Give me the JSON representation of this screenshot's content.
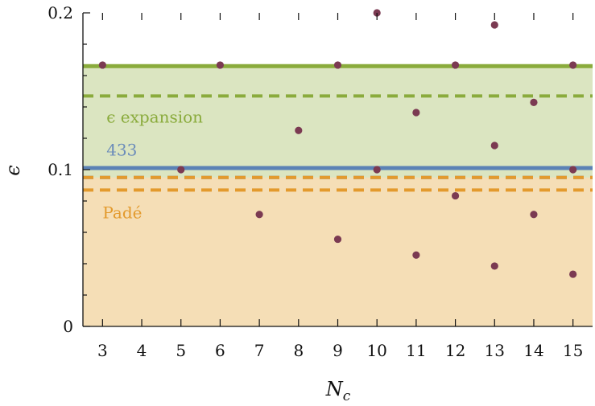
{
  "chart_data": {
    "type": "scatter",
    "title": "",
    "xlabel": "N",
    "xlabel_subscript": "c",
    "ylabel": "ϵ",
    "xlim": [
      2.5,
      15.5
    ],
    "ylim": [
      0,
      0.2
    ],
    "xticks": [
      3,
      4,
      5,
      6,
      7,
      8,
      9,
      10,
      11,
      12,
      13,
      14,
      15
    ],
    "yticks": [
      {
        "value": 0,
        "label": "0"
      },
      {
        "value": 0.1,
        "label": "0.1"
      },
      {
        "value": 0.2,
        "label": "0.2"
      }
    ],
    "grid": false,
    "points": [
      {
        "x": 3,
        "y": 0.1667
      },
      {
        "x": 5,
        "y": 0.1
      },
      {
        "x": 6,
        "y": 0.1667
      },
      {
        "x": 7,
        "y": 0.0714
      },
      {
        "x": 8,
        "y": 0.125
      },
      {
        "x": 9,
        "y": 0.1667
      },
      {
        "x": 9,
        "y": 0.0556
      },
      {
        "x": 10,
        "y": 0.2
      },
      {
        "x": 10,
        "y": 0.1
      },
      {
        "x": 11,
        "y": 0.1364
      },
      {
        "x": 11,
        "y": 0.0455
      },
      {
        "x": 12,
        "y": 0.1667
      },
      {
        "x": 12,
        "y": 0.0833
      },
      {
        "x": 13,
        "y": 0.1923
      },
      {
        "x": 13,
        "y": 0.1154
      },
      {
        "x": 13,
        "y": 0.0385
      },
      {
        "x": 14,
        "y": 0.1429
      },
      {
        "x": 14,
        "y": 0.0714
      },
      {
        "x": 15,
        "y": 0.1667
      },
      {
        "x": 15,
        "y": 0.1
      },
      {
        "x": 15,
        "y": 0.0333
      }
    ],
    "bands": [
      {
        "name": "ϵ expansion",
        "from": 0,
        "to": 0.166,
        "color": "#dbe5c1"
      },
      {
        "name": "Padé",
        "from": 0,
        "to": 0.095,
        "color": "#f5deb6"
      }
    ],
    "lines": [
      {
        "name": "ϵ expansion",
        "value": 0.166,
        "style": "solid",
        "color": "#8aab3c"
      },
      {
        "name": "ϵ expansion",
        "value": 0.147,
        "style": "dashed",
        "color": "#8aab3c"
      },
      {
        "name": "433",
        "value": 0.101,
        "style": "solid",
        "color": "#5b82b5"
      },
      {
        "name": "433",
        "value": 0.095,
        "style": "dashed",
        "color": "#5b82b5"
      },
      {
        "name": "Padé",
        "value": 0.095,
        "style": "dashed",
        "color": "#e39a2d"
      },
      {
        "name": "Padé",
        "value": 0.087,
        "style": "dashed",
        "color": "#e39a2d"
      }
    ],
    "annotations": [
      {
        "text": "ϵ  expansion",
        "color": "#8aab3c",
        "x": 3.1,
        "y": 0.13
      },
      {
        "text": "433",
        "color": "#6b8cba",
        "x": 3.1,
        "y": 0.109
      },
      {
        "text": "Padé",
        "color": "#e39a2d",
        "x": 3.0,
        "y": 0.069
      }
    ],
    "colors": {
      "points": "#7b3a52",
      "axis": "#111111"
    }
  }
}
